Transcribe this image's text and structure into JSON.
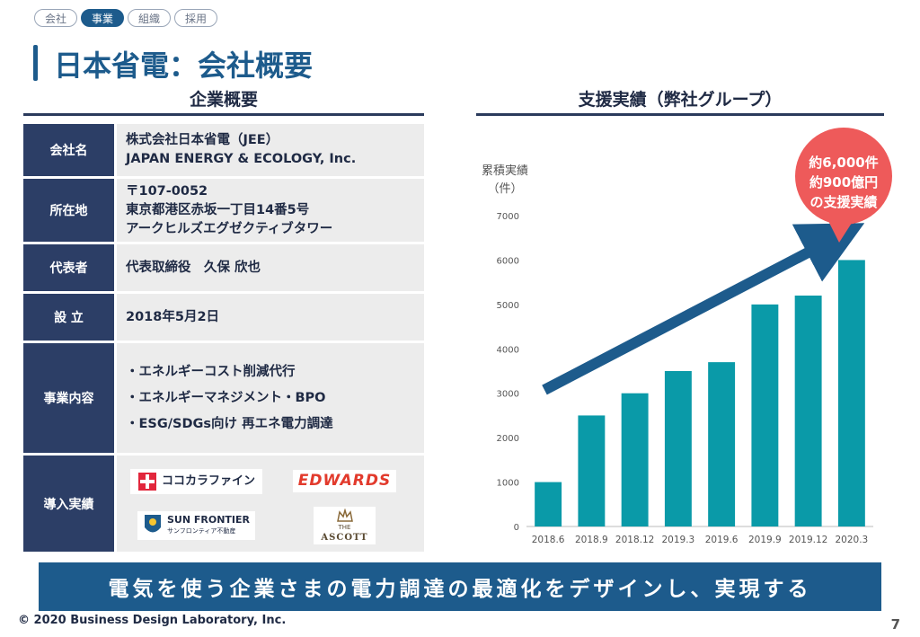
{
  "nav": {
    "tabs": [
      "会社",
      "事業",
      "組織",
      "採用"
    ],
    "active": "事業"
  },
  "page_title": "日本省電：会社概要",
  "overview": {
    "title": "企業概要",
    "rows": [
      {
        "label": "会社名",
        "lines": [
          "株式会社日本省電（JEE）",
          "JAPAN ENERGY & ECOLOGY, Inc."
        ]
      },
      {
        "label": "所在地",
        "lines": [
          "〒107-0052",
          "東京都港区赤坂一丁目14番5号",
          "アークヒルズエグゼクティブタワー"
        ]
      },
      {
        "label": "代表者",
        "lines": [
          "代表取締役　久保 欣也"
        ]
      },
      {
        "label": "設 立",
        "lines": [
          "2018年5月2日"
        ]
      },
      {
        "label": "事業内容",
        "lines": [
          "・エネルギーコスト削減代行",
          "・エネルギーマネジメント・BPO",
          "・ESG/SDGs向け 再エネ電力調達"
        ]
      },
      {
        "label": "導入実績",
        "lines": []
      }
    ],
    "logos": {
      "cocokara": "ココカラファイン",
      "edwards": "EDWARDS",
      "sunfrontier": "SUN FRONTIER",
      "sunfrontier_sub": "サンフロンティア不動産",
      "ascott_the": "THE",
      "ascott": "ASCOTT"
    }
  },
  "chart_section": {
    "title": "支援実績（弊社グループ）"
  },
  "callout": {
    "line1": "約6,000件",
    "line2": "約900億円",
    "line3": "の支援実績"
  },
  "chart_data": {
    "type": "bar",
    "ylabel_line1": "累積実績",
    "ylabel_line2": "（件）",
    "categories": [
      "2018.6",
      "2018.9",
      "2018.12",
      "2019.3",
      "2019.6",
      "2019.9",
      "2019.12",
      "2020.3"
    ],
    "values": [
      1000,
      2500,
      3000,
      3500,
      3700,
      5000,
      5200,
      6000
    ],
    "ylim": [
      0,
      7000
    ],
    "yticks": [
      0,
      1000,
      2000,
      3000,
      4000,
      5000,
      6000,
      7000
    ],
    "grid": false,
    "bar_color": "#0a9aa8",
    "arrow_color": "#1d5b8c",
    "callout_color": "#ee5a5a"
  },
  "banner": "電気を使う企業さまの電力調達の最適化をデザインし、実現する",
  "footer": "© 2020 Business Design Laboratory, Inc.",
  "page_number": "7"
}
